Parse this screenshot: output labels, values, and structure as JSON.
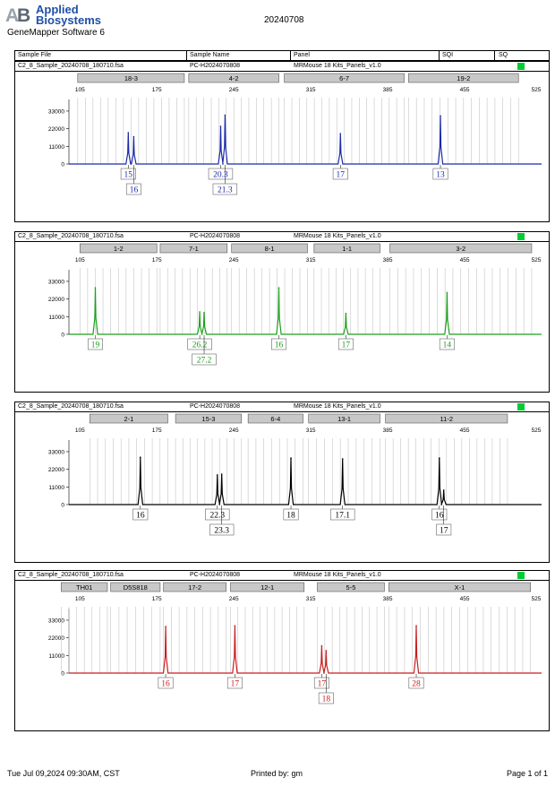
{
  "header": {
    "logo_line1": "Applied",
    "logo_line2": "Biosystems",
    "software": "GeneMapper Software 6",
    "date": "20240708"
  },
  "columns": {
    "sample_file": "Sample File",
    "sample_name": "Sample Name",
    "panel": "Panel",
    "sqi": "SQI",
    "sq": "SQ"
  },
  "sample": {
    "file": "C2_8_Sample_20240708_180710.fsa",
    "name": "PC-H2024070808",
    "panel": "MRMouse 18 Kits_Panels_v1.0"
  },
  "footer": {
    "timestamp": "Tue Jul 09,2024 09:30AM, CST",
    "printed_by": "Printed by: gm",
    "page": "Page 1 of 1"
  },
  "chart_data": [
    {
      "type": "line",
      "color": "#1c2aa8",
      "x_ticks": [
        105,
        175,
        245,
        315,
        385,
        455,
        525
      ],
      "y_ticks": [
        0,
        11000,
        22000,
        33000
      ],
      "xlim": [
        95,
        525
      ],
      "ylim": [
        0,
        38000
      ],
      "markers": [
        {
          "label": "18-3",
          "start": 103,
          "end": 200
        },
        {
          "label": "4-2",
          "start": 204,
          "end": 286
        },
        {
          "label": "6-7",
          "start": 291,
          "end": 400
        },
        {
          "label": "19-2",
          "start": 404,
          "end": 504
        }
      ],
      "peaks": [
        {
          "x": 149,
          "y": 19500
        },
        {
          "x": 154,
          "y": 17000
        },
        {
          "x": 233,
          "y": 23500
        },
        {
          "x": 237,
          "y": 30500
        },
        {
          "x": 342,
          "y": 19000
        },
        {
          "x": 433,
          "y": 30000
        }
      ],
      "alleles": [
        {
          "x": 149,
          "label": "15",
          "row": 0
        },
        {
          "x": 154,
          "label": "16",
          "row": 1
        },
        {
          "x": 233,
          "label": "20.3",
          "row": 0
        },
        {
          "x": 237,
          "label": "21.3",
          "row": 1
        },
        {
          "x": 342,
          "label": "17",
          "row": 0
        },
        {
          "x": 433,
          "label": "13",
          "row": 0
        }
      ]
    },
    {
      "type": "line",
      "color": "#1ea01e",
      "x_ticks": [
        105,
        175,
        245,
        315,
        385,
        455,
        525
      ],
      "y_ticks": [
        0,
        11000,
        22000,
        33000
      ],
      "xlim": [
        95,
        525
      ],
      "ylim": [
        0,
        38000
      ],
      "markers": [
        {
          "label": "1-2",
          "start": 105,
          "end": 175
        },
        {
          "label": "7-1",
          "start": 178,
          "end": 239
        },
        {
          "label": "8-1",
          "start": 243,
          "end": 312
        },
        {
          "label": "1-1",
          "start": 318,
          "end": 378
        },
        {
          "label": "3-2",
          "start": 387,
          "end": 516
        }
      ],
      "peaks": [
        {
          "x": 119,
          "y": 29000
        },
        {
          "x": 214,
          "y": 14000
        },
        {
          "x": 218,
          "y": 13500
        },
        {
          "x": 286,
          "y": 29000
        },
        {
          "x": 347,
          "y": 13000
        },
        {
          "x": 439,
          "y": 26000
        }
      ],
      "alleles": [
        {
          "x": 119,
          "label": "19",
          "row": 0
        },
        {
          "x": 214,
          "label": "26.2",
          "row": 0
        },
        {
          "x": 218,
          "label": "27.2",
          "row": 1
        },
        {
          "x": 286,
          "label": "16",
          "row": 0
        },
        {
          "x": 347,
          "label": "17",
          "row": 0
        },
        {
          "x": 439,
          "label": "14",
          "row": 0
        }
      ]
    },
    {
      "type": "line",
      "color": "#000000",
      "x_ticks": [
        105,
        175,
        245,
        315,
        385,
        455,
        525
      ],
      "y_ticks": [
        0,
        11000,
        22000,
        33000
      ],
      "xlim": [
        95,
        525
      ],
      "ylim": [
        0,
        38000
      ],
      "markers": [
        {
          "label": "2-1",
          "start": 114,
          "end": 185
        },
        {
          "label": "15-3",
          "start": 192,
          "end": 252
        },
        {
          "label": "6-4",
          "start": 258,
          "end": 308
        },
        {
          "label": "13-1",
          "start": 313,
          "end": 378
        },
        {
          "label": "11-2",
          "start": 383,
          "end": 494
        }
      ],
      "peaks": [
        {
          "x": 160,
          "y": 29500
        },
        {
          "x": 230,
          "y": 18500
        },
        {
          "x": 234,
          "y": 19000
        },
        {
          "x": 297,
          "y": 29000
        },
        {
          "x": 344,
          "y": 28500
        },
        {
          "x": 432,
          "y": 29000
        },
        {
          "x": 436,
          "y": 9000
        }
      ],
      "alleles": [
        {
          "x": 160,
          "label": "16",
          "row": 0
        },
        {
          "x": 230,
          "label": "22.3",
          "row": 0
        },
        {
          "x": 234,
          "label": "23.3",
          "row": 1
        },
        {
          "x": 297,
          "label": "18",
          "row": 0
        },
        {
          "x": 344,
          "label": "17.1",
          "row": 0
        },
        {
          "x": 432,
          "label": "16",
          "row": 0
        },
        {
          "x": 436,
          "label": "17",
          "row": 1
        }
      ]
    },
    {
      "type": "line",
      "color": "#c81e1e",
      "x_ticks": [
        105,
        175,
        245,
        315,
        385,
        455,
        525
      ],
      "y_ticks": [
        0,
        11000,
        22000,
        33000
      ],
      "xlim": [
        95,
        525
      ],
      "ylim": [
        0,
        38000
      ],
      "markers": [
        {
          "label": "TH01",
          "start": 88,
          "end": 130
        },
        {
          "label": "D5S818",
          "start": 133,
          "end": 178
        },
        {
          "label": "17-2",
          "start": 181,
          "end": 238
        },
        {
          "label": "12-1",
          "start": 242,
          "end": 309
        },
        {
          "label": "5-5",
          "start": 321,
          "end": 382
        },
        {
          "label": "X-1",
          "start": 386,
          "end": 515
        }
      ],
      "peaks": [
        {
          "x": 183,
          "y": 29000
        },
        {
          "x": 246,
          "y": 29500
        },
        {
          "x": 325,
          "y": 17000
        },
        {
          "x": 329,
          "y": 14000
        },
        {
          "x": 411,
          "y": 29500
        }
      ],
      "alleles": [
        {
          "x": 183,
          "label": "16",
          "row": 0
        },
        {
          "x": 246,
          "label": "17",
          "row": 0
        },
        {
          "x": 325,
          "label": "17",
          "row": 0
        },
        {
          "x": 329,
          "label": "18",
          "row": 1
        },
        {
          "x": 411,
          "label": "28",
          "row": 0
        }
      ]
    }
  ]
}
